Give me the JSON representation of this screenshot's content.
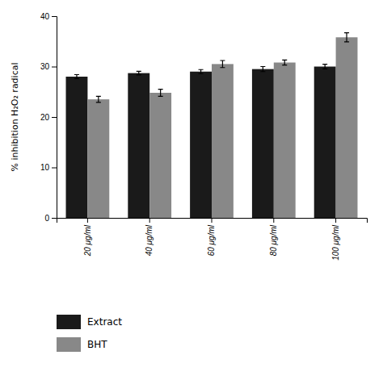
{
  "chart_data": {
    "type": "bar",
    "categories": [
      "20 μg/ml",
      "40 μg/ml",
      "60 μg/ml",
      "80 μg/ml",
      "100 μg/ml"
    ],
    "series": [
      {
        "name": "Extract",
        "color": "#1a1a1a",
        "values": [
          28.0,
          28.7,
          29.0,
          29.5,
          30.0
        ],
        "errors": [
          0.4,
          0.35,
          0.4,
          0.5,
          0.45
        ]
      },
      {
        "name": "BHT",
        "color": "#888888",
        "values": [
          23.5,
          24.8,
          30.5,
          30.8,
          35.8
        ],
        "errors": [
          0.6,
          0.7,
          0.7,
          0.5,
          0.9
        ]
      }
    ],
    "ylabel": "% inhibition H₂O₂ radical",
    "ylim": [
      0,
      40
    ],
    "yticks": [
      0,
      10,
      20,
      30,
      40
    ],
    "legend": "lower left"
  }
}
